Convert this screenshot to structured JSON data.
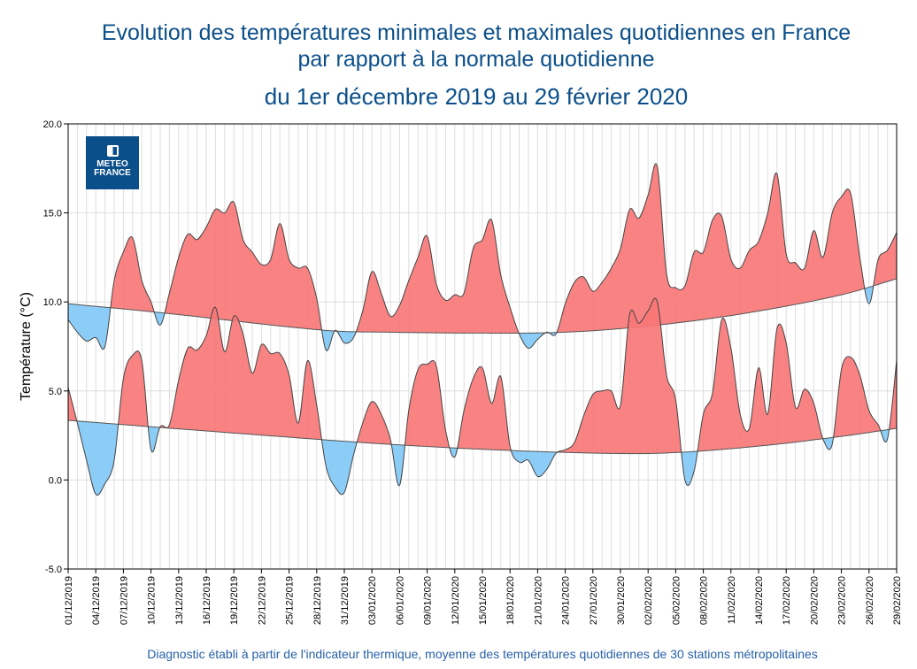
{
  "title_line1": "Evolution des températures minimales et maximales quotidiennes en France",
  "title_line2": "par rapport à la normale quotidienne",
  "subtitle": "du 1er décembre 2019 au 29 février 2020",
  "footer": "Diagnostic établi à partir de l'indicateur thermique, moyenne des températures quotidiennes de 30 stations métropolitaines",
  "logo": {
    "line1": "METEO",
    "line2": "FRANCE"
  },
  "colors": {
    "above_normal": "#f87575",
    "below_normal": "#8ccdf8",
    "title": "#0b4f8a",
    "logo_bg": "#0b4f8a"
  },
  "chart_data": {
    "type": "area",
    "ylabel": "Température (°C)",
    "ylim": [
      -5,
      20
    ],
    "y_ticks": [
      "20.0",
      "15.0",
      "10.0",
      "5.0",
      "0.0",
      "-5.0"
    ],
    "y_tick_values": [
      20,
      15,
      10,
      5,
      0,
      -5
    ],
    "grid": true,
    "x_tick_labels": [
      "01/12/2019",
      "04/12/2019",
      "07/12/2019",
      "10/12/2019",
      "13/12/2019",
      "16/12/2019",
      "19/12/2019",
      "22/12/2019",
      "25/12/2019",
      "28/12/2019",
      "31/12/2019",
      "03/01/2020",
      "06/01/2020",
      "09/01/2020",
      "12/01/2020",
      "15/01/2020",
      "18/01/2020",
      "21/01/2020",
      "24/01/2020",
      "27/01/2020",
      "30/01/2020",
      "02/02/2020",
      "05/02/2020",
      "08/02/2020",
      "11/02/2020",
      "14/02/2020",
      "17/02/2020",
      "20/02/2020",
      "23/02/2020",
      "26/02/2020",
      "29/02/2020"
    ],
    "x_start": "01/12/2019",
    "x_end": "29/02/2020",
    "tmax": [
      9.0,
      8.3,
      7.8,
      8.0,
      7.5,
      11.2,
      12.8,
      13.6,
      11.2,
      10.0,
      8.7,
      10.5,
      12.5,
      13.8,
      13.5,
      14.2,
      15.2,
      15.0,
      15.6,
      13.5,
      12.8,
      12.1,
      12.4,
      14.4,
      12.4,
      11.9,
      11.9,
      10.2,
      7.3,
      8.4,
      7.7,
      8.0,
      9.5,
      11.7,
      10.5,
      9.2,
      9.8,
      11.2,
      12.5,
      13.7,
      11.0,
      10.1,
      10.4,
      10.5,
      13.0,
      13.5,
      14.6,
      11.5,
      9.7,
      8.2,
      7.4,
      7.9,
      8.3,
      8.2,
      9.9,
      11.1,
      11.4,
      10.6,
      11.1,
      11.9,
      13.0,
      15.2,
      14.7,
      16.0,
      17.6,
      11.6,
      10.8,
      10.9,
      12.8,
      12.8,
      14.6,
      14.8,
      12.4,
      11.9,
      12.9,
      13.4,
      15.0,
      17.2,
      12.7,
      12.2,
      11.9,
      14.0,
      12.5,
      15.0,
      15.9,
      16.1,
      12.5,
      9.9,
      12.4,
      12.9,
      13.9
    ],
    "tmin": [
      5.2,
      3.2,
      1.1,
      -0.8,
      -0.2,
      1.1,
      5.7,
      7.0,
      6.7,
      1.7,
      3.0,
      3.1,
      5.6,
      7.4,
      7.3,
      8.1,
      9.7,
      7.2,
      9.2,
      8.2,
      6.0,
      7.6,
      7.1,
      7.1,
      5.9,
      3.2,
      6.7,
      4.2,
      0.8,
      -0.4,
      -0.7,
      1.4,
      3.2,
      4.4,
      3.7,
      2.3,
      -0.3,
      3.9,
      6.2,
      6.5,
      6.4,
      2.8,
      1.3,
      3.9,
      5.7,
      6.3,
      4.3,
      5.8,
      1.9,
      1.0,
      1.1,
      0.2,
      0.6,
      1.5,
      1.7,
      2.1,
      3.6,
      4.8,
      5.0,
      5.0,
      4.2,
      9.3,
      8.8,
      9.5,
      10.0,
      5.9,
      4.5,
      0.0,
      0.5,
      3.7,
      4.9,
      9.0,
      7.4,
      3.7,
      2.9,
      6.3,
      3.7,
      8.5,
      7.7,
      4.1,
      5.1,
      4.3,
      2.3,
      2.0,
      6.2,
      6.9,
      5.9,
      3.9,
      3.1,
      2.3,
      6.7
    ],
    "normal_max": [
      {
        "date": "01/12/2019",
        "value": 9.9
      },
      {
        "date": "11/12/2019",
        "value": 9.4
      },
      {
        "date": "29/12/2019",
        "value": 8.4
      },
      {
        "date": "05/01/2020",
        "value": 8.3
      },
      {
        "date": "14/01/2020",
        "value": 8.25
      },
      {
        "date": "24/01/2020",
        "value": 8.3
      },
      {
        "date": "03/02/2020",
        "value": 8.7
      },
      {
        "date": "13/02/2020",
        "value": 9.4
      },
      {
        "date": "23/02/2020",
        "value": 10.4
      },
      {
        "date": "29/02/2020",
        "value": 11.3
      }
    ],
    "normal_min": [
      {
        "date": "01/12/2019",
        "value": 3.35
      },
      {
        "date": "11/12/2019",
        "value": 2.95
      },
      {
        "date": "29/12/2019",
        "value": 2.25
      },
      {
        "date": "05/01/2020",
        "value": 2.0
      },
      {
        "date": "14/01/2020",
        "value": 1.75
      },
      {
        "date": "24/01/2020",
        "value": 1.55
      },
      {
        "date": "03/02/2020",
        "value": 1.5
      },
      {
        "date": "13/02/2020",
        "value": 1.85
      },
      {
        "date": "23/02/2020",
        "value": 2.45
      },
      {
        "date": "29/02/2020",
        "value": 2.9
      }
    ]
  }
}
